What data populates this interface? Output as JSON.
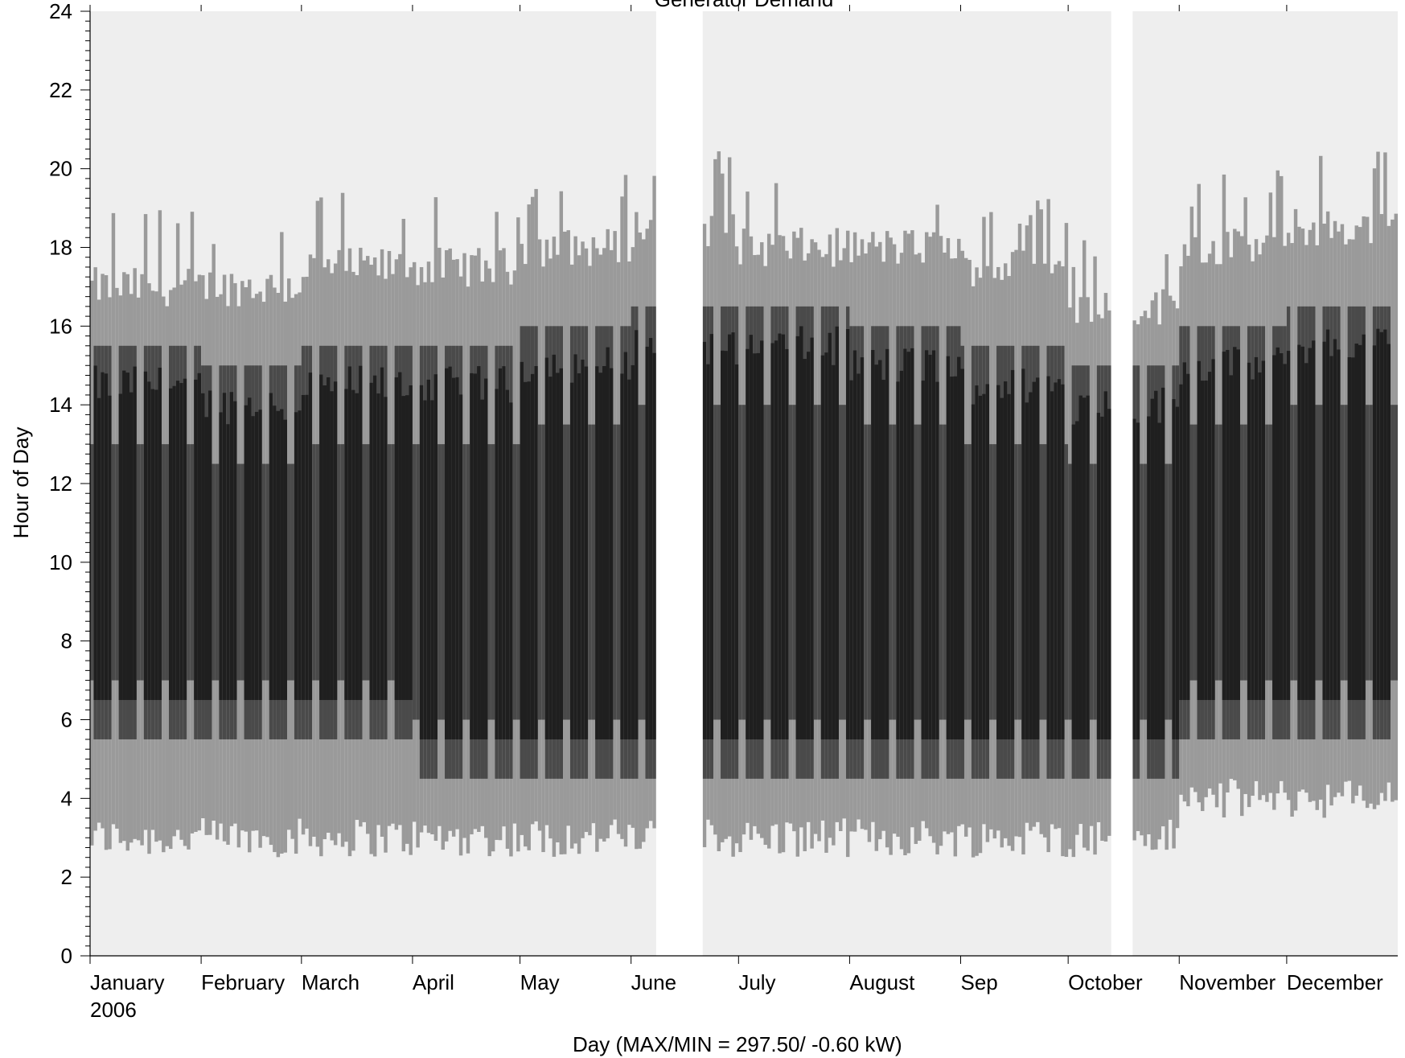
{
  "chart_data": {
    "type": "heatmap",
    "title": "Generator Demand",
    "ylabel": "Hour of Day",
    "xlabel": "Day",
    "xlabel_stats": "(MAX/MIN =     297.50/  -0.60 kW)",
    "x_range": [
      "2006-01-01",
      "2006-12-31"
    ],
    "ylim": [
      0,
      24
    ],
    "y_ticks": [
      0,
      2,
      4,
      6,
      8,
      10,
      12,
      14,
      16,
      18,
      20,
      22,
      24
    ],
    "year_label": "2006",
    "months": [
      {
        "label": "January",
        "start_day": 1
      },
      {
        "label": "February",
        "start_day": 32
      },
      {
        "label": "March",
        "start_day": 60
      },
      {
        "label": "April",
        "start_day": 91
      },
      {
        "label": "May",
        "start_day": 121
      },
      {
        "label": "June",
        "start_day": 152
      },
      {
        "label": "July",
        "start_day": 182
      },
      {
        "label": "August",
        "start_day": 213
      },
      {
        "label": "Sep",
        "start_day": 244
      },
      {
        "label": "October",
        "start_day": 274
      },
      {
        "label": "November",
        "start_day": 305
      },
      {
        "label": "December",
        "start_day": 335
      }
    ],
    "missing_day_ranges": [
      [
        159,
        171
      ],
      [
        286,
        291
      ]
    ],
    "daily_profile_by_month": [
      {
        "month": "January",
        "start_hour": 3.0,
        "peak_start": 6.5,
        "peak_end": 14.5,
        "end_hour": 17.0
      },
      {
        "month": "February",
        "start_hour": 3.0,
        "peak_start": 6.5,
        "peak_end": 14.0,
        "end_hour": 17.0
      },
      {
        "month": "March",
        "start_hour": 3.0,
        "peak_start": 6.5,
        "peak_end": 14.5,
        "end_hour": 17.5
      },
      {
        "month": "April",
        "start_hour": 3.0,
        "peak_start": 5.5,
        "peak_end": 14.5,
        "end_hour": 17.5
      },
      {
        "month": "May",
        "start_hour": 3.0,
        "peak_start": 5.5,
        "peak_end": 15.0,
        "end_hour": 18.0
      },
      {
        "month": "June",
        "start_hour": 3.0,
        "peak_start": 5.5,
        "peak_end": 15.5,
        "end_hour": 18.5
      },
      {
        "month": "July",
        "start_hour": 3.0,
        "peak_start": 5.5,
        "peak_end": 15.5,
        "end_hour": 18.0
      },
      {
        "month": "August",
        "start_hour": 3.0,
        "peak_start": 5.5,
        "peak_end": 15.0,
        "end_hour": 18.0
      },
      {
        "month": "Sep",
        "start_hour": 3.0,
        "peak_start": 5.5,
        "peak_end": 14.5,
        "end_hour": 17.5
      },
      {
        "month": "October",
        "start_hour": 3.0,
        "peak_start": 5.5,
        "peak_end": 14.0,
        "end_hour": 16.5
      },
      {
        "month": "November",
        "start_hour": 4.0,
        "peak_start": 6.5,
        "peak_end": 15.0,
        "end_hour": 18.0
      },
      {
        "month": "December",
        "start_hour": 4.0,
        "peak_start": 6.5,
        "peak_end": 15.5,
        "end_hour": 18.5
      }
    ],
    "value_max_kw": 297.5,
    "value_min_kw": -0.6,
    "colors": {
      "background": "#eeeeee",
      "missing": "#ffffff",
      "high": "#1f1f1f",
      "mid": "#4a4a4a",
      "low": "#9a9a9a"
    },
    "grid": false
  }
}
